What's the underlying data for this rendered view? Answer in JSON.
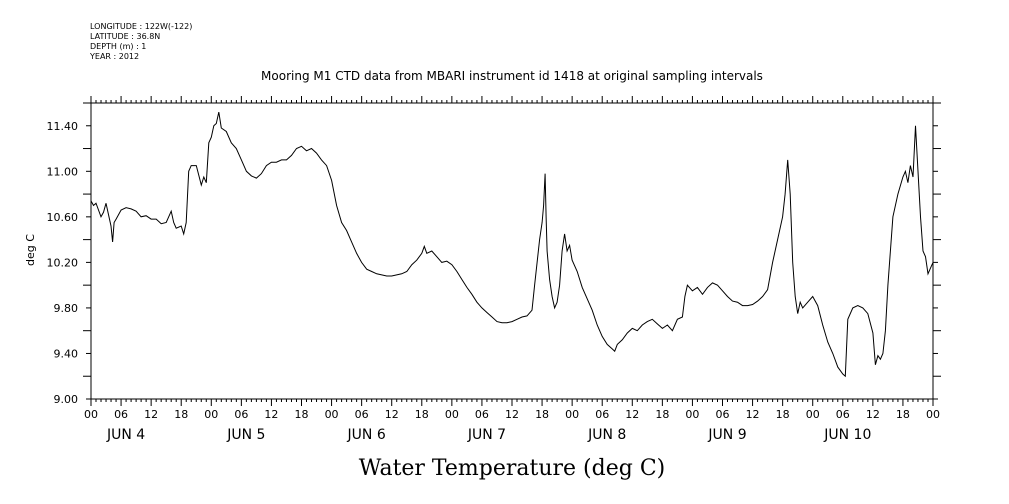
{
  "header": {
    "longitude": "LONGITUDE : 122W(-122)",
    "latitude": "LATITUDE : 36.8N",
    "depth": "DEPTH (m) : 1",
    "year": "YEAR : 2012"
  },
  "chart_data": {
    "type": "line",
    "title": "Mooring M1 CTD data from MBARI instrument id 1418 at original sampling intervals",
    "xlabel": "Water Temperature (deg C)",
    "ylabel": "deg C",
    "xlim_hours": [
      0,
      168
    ],
    "ylim": [
      9.0,
      11.6
    ],
    "y_ticks": [
      "9.00",
      "9.40",
      "9.80",
      "10.20",
      "10.60",
      "11.00",
      "11.40"
    ],
    "hour_tick_labels": [
      "00",
      "06",
      "12",
      "18"
    ],
    "day_labels": [
      "JUN  4",
      "JUN  5",
      "JUN  6",
      "JUN  7",
      "JUN  8",
      "JUN  9",
      "JUN 10"
    ],
    "grid": false,
    "series": [
      {
        "color": "#000000",
        "points": [
          [
            0,
            10.74
          ],
          [
            0.5,
            10.7
          ],
          [
            1,
            10.72
          ],
          [
            1.5,
            10.66
          ],
          [
            2,
            10.6
          ],
          [
            2.5,
            10.64
          ],
          [
            3,
            10.72
          ],
          [
            3.5,
            10.62
          ],
          [
            4,
            10.52
          ],
          [
            4.3,
            10.38
          ],
          [
            4.6,
            10.55
          ],
          [
            5,
            10.58
          ],
          [
            6,
            10.66
          ],
          [
            7,
            10.68
          ],
          [
            8,
            10.67
          ],
          [
            9,
            10.65
          ],
          [
            10,
            10.6
          ],
          [
            11,
            10.61
          ],
          [
            12,
            10.58
          ],
          [
            13,
            10.58
          ],
          [
            14,
            10.54
          ],
          [
            15,
            10.55
          ],
          [
            16,
            10.65
          ],
          [
            16.5,
            10.55
          ],
          [
            17,
            10.5
          ],
          [
            18,
            10.52
          ],
          [
            18.5,
            10.45
          ],
          [
            19,
            10.55
          ],
          [
            19.5,
            11.0
          ],
          [
            20,
            11.05
          ],
          [
            21,
            11.05
          ],
          [
            22,
            10.88
          ],
          [
            22.5,
            10.95
          ],
          [
            23,
            10.9
          ],
          [
            23.5,
            11.25
          ],
          [
            24,
            11.3
          ],
          [
            24.5,
            11.4
          ],
          [
            25,
            11.42
          ],
          [
            25.5,
            11.52
          ],
          [
            26,
            11.38
          ],
          [
            27,
            11.35
          ],
          [
            28,
            11.25
          ],
          [
            29,
            11.2
          ],
          [
            30,
            11.1
          ],
          [
            31,
            11.0
          ],
          [
            32,
            10.96
          ],
          [
            33,
            10.94
          ],
          [
            34,
            10.98
          ],
          [
            35,
            11.05
          ],
          [
            36,
            11.08
          ],
          [
            37,
            11.08
          ],
          [
            38,
            11.1
          ],
          [
            39,
            11.1
          ],
          [
            40,
            11.14
          ],
          [
            41,
            11.2
          ],
          [
            42,
            11.22
          ],
          [
            43,
            11.18
          ],
          [
            44,
            11.2
          ],
          [
            45,
            11.16
          ],
          [
            46,
            11.1
          ],
          [
            47,
            11.05
          ],
          [
            48,
            10.92
          ],
          [
            49,
            10.7
          ],
          [
            50,
            10.55
          ],
          [
            51,
            10.48
          ],
          [
            52,
            10.38
          ],
          [
            53,
            10.28
          ],
          [
            54,
            10.2
          ],
          [
            55,
            10.14
          ],
          [
            56,
            10.12
          ],
          [
            57,
            10.1
          ],
          [
            58,
            10.09
          ],
          [
            59,
            10.08
          ],
          [
            60,
            10.08
          ],
          [
            61,
            10.09
          ],
          [
            62,
            10.1
          ],
          [
            63,
            10.12
          ],
          [
            64,
            10.18
          ],
          [
            65,
            10.22
          ],
          [
            66,
            10.28
          ],
          [
            66.5,
            10.34
          ],
          [
            67,
            10.28
          ],
          [
            68,
            10.3
          ],
          [
            69,
            10.25
          ],
          [
            70,
            10.2
          ],
          [
            71,
            10.21
          ],
          [
            72,
            10.18
          ],
          [
            73,
            10.12
          ],
          [
            74,
            10.05
          ],
          [
            75,
            9.98
          ],
          [
            76,
            9.92
          ],
          [
            77,
            9.85
          ],
          [
            78,
            9.8
          ],
          [
            79,
            9.76
          ],
          [
            80,
            9.72
          ],
          [
            81,
            9.68
          ],
          [
            82,
            9.67
          ],
          [
            83,
            9.67
          ],
          [
            84,
            9.68
          ],
          [
            85,
            9.7
          ],
          [
            86,
            9.72
          ],
          [
            87,
            9.73
          ],
          [
            88,
            9.78
          ],
          [
            88.5,
            10.0
          ],
          [
            89,
            10.2
          ],
          [
            89.5,
            10.4
          ],
          [
            90,
            10.55
          ],
          [
            90.3,
            10.7
          ],
          [
            90.6,
            10.98
          ],
          [
            90.8,
            10.6
          ],
          [
            91,
            10.3
          ],
          [
            91.5,
            10.05
          ],
          [
            92,
            9.9
          ],
          [
            92.5,
            9.8
          ],
          [
            93,
            9.85
          ],
          [
            93.5,
            10.0
          ],
          [
            94,
            10.3
          ],
          [
            94.5,
            10.45
          ],
          [
            95,
            10.3
          ],
          [
            95.5,
            10.35
          ],
          [
            96,
            10.22
          ],
          [
            97,
            10.12
          ],
          [
            98,
            9.98
          ],
          [
            99,
            9.88
          ],
          [
            100,
            9.78
          ],
          [
            101,
            9.65
          ],
          [
            102,
            9.55
          ],
          [
            103,
            9.48
          ],
          [
            104,
            9.44
          ],
          [
            104.5,
            9.42
          ],
          [
            105,
            9.48
          ],
          [
            106,
            9.52
          ],
          [
            107,
            9.58
          ],
          [
            108,
            9.62
          ],
          [
            109,
            9.6
          ],
          [
            110,
            9.65
          ],
          [
            111,
            9.68
          ],
          [
            112,
            9.7
          ],
          [
            113,
            9.66
          ],
          [
            114,
            9.62
          ],
          [
            115,
            9.65
          ],
          [
            116,
            9.6
          ],
          [
            117,
            9.7
          ],
          [
            118,
            9.72
          ],
          [
            118.5,
            9.9
          ],
          [
            119,
            10.0
          ],
          [
            120,
            9.95
          ],
          [
            121,
            9.98
          ],
          [
            122,
            9.92
          ],
          [
            123,
            9.98
          ],
          [
            124,
            10.02
          ],
          [
            125,
            10.0
          ],
          [
            126,
            9.95
          ],
          [
            127,
            9.9
          ],
          [
            128,
            9.86
          ],
          [
            129,
            9.85
          ],
          [
            130,
            9.82
          ],
          [
            131,
            9.82
          ],
          [
            132,
            9.83
          ],
          [
            133,
            9.86
          ],
          [
            134,
            9.9
          ],
          [
            135,
            9.96
          ],
          [
            136,
            10.2
          ],
          [
            137,
            10.4
          ],
          [
            138,
            10.6
          ],
          [
            138.5,
            10.8
          ],
          [
            139,
            11.1
          ],
          [
            139.5,
            10.8
          ],
          [
            140,
            10.2
          ],
          [
            140.5,
            9.9
          ],
          [
            141,
            9.75
          ],
          [
            141.5,
            9.85
          ],
          [
            142,
            9.8
          ],
          [
            143,
            9.85
          ],
          [
            144,
            9.9
          ],
          [
            145,
            9.82
          ],
          [
            146,
            9.65
          ],
          [
            147,
            9.5
          ],
          [
            148,
            9.4
          ],
          [
            149,
            9.28
          ],
          [
            150,
            9.22
          ],
          [
            150.5,
            9.2
          ],
          [
            151,
            9.7
          ],
          [
            152,
            9.8
          ],
          [
            153,
            9.82
          ],
          [
            154,
            9.8
          ],
          [
            155,
            9.75
          ],
          [
            156,
            9.58
          ],
          [
            156.5,
            9.3
          ],
          [
            157,
            9.38
          ],
          [
            157.5,
            9.35
          ],
          [
            158,
            9.4
          ],
          [
            158.5,
            9.6
          ],
          [
            159,
            10.0
          ],
          [
            159.5,
            10.3
          ],
          [
            160,
            10.6
          ],
          [
            161,
            10.8
          ],
          [
            162,
            10.95
          ],
          [
            162.5,
            11.0
          ],
          [
            163,
            10.9
          ],
          [
            163.5,
            11.05
          ],
          [
            164,
            10.95
          ],
          [
            164.5,
            11.4
          ],
          [
            165,
            11.0
          ],
          [
            165.5,
            10.6
          ],
          [
            166,
            10.3
          ],
          [
            166.5,
            10.25
          ],
          [
            167,
            10.1
          ],
          [
            167.5,
            10.15
          ],
          [
            168,
            10.2
          ]
        ]
      }
    ]
  }
}
